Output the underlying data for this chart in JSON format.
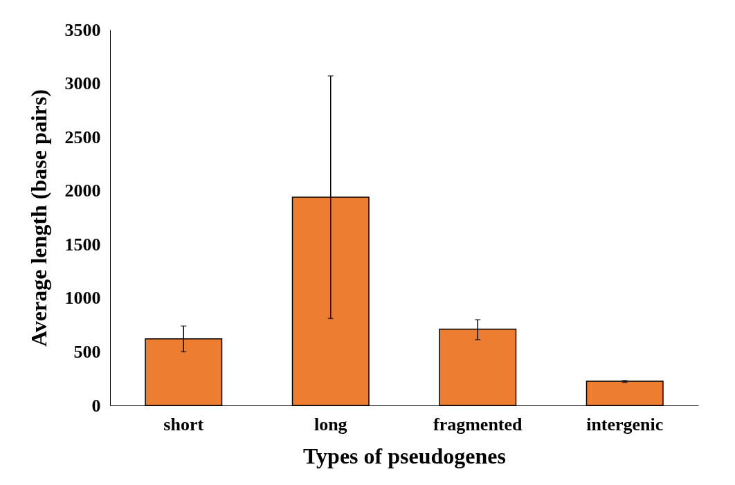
{
  "chart_data": {
    "type": "bar",
    "xlabel": "Types of pseudogenes",
    "ylabel": "Average length  (base pairs)",
    "categories": [
      "short",
      "long",
      "fragmented",
      "intergenic"
    ],
    "values": [
      620,
      1940,
      710,
      225
    ],
    "errors": [
      [
        500,
        740
      ],
      [
        810,
        3070
      ],
      [
        612,
        799
      ],
      [
        215,
        232
      ]
    ],
    "color": "#ed7d31",
    "ylim": [
      0,
      3500
    ],
    "yticks": [
      0,
      500,
      1000,
      1500,
      2000,
      2500,
      3000,
      3500
    ],
    "grid": false
  }
}
